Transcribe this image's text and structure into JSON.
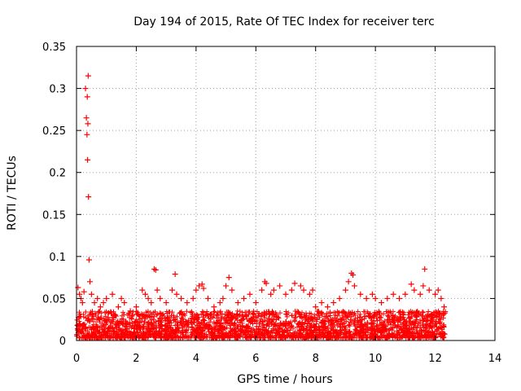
{
  "chart_data": {
    "type": "scatter",
    "title": "Day 194 of 2015, Rate Of TEC Index for receiver terc",
    "xlabel": "GPS time / hours",
    "ylabel": "ROTI / TECUs",
    "xlim": [
      0,
      14
    ],
    "ylim": [
      0,
      0.35
    ],
    "x_ticks": [
      0,
      2,
      4,
      6,
      8,
      10,
      12,
      14
    ],
    "x_tick_labels": [
      "0",
      "2",
      "4",
      "6",
      "8",
      "10",
      "12",
      "14"
    ],
    "y_ticks": [
      0,
      0.05,
      0.1,
      0.15,
      0.2,
      0.25,
      0.3,
      0.35
    ],
    "y_tick_labels": [
      "0",
      "0.05",
      "0.1",
      "0.15",
      "0.2",
      "0.25",
      "0.3",
      "0.35"
    ],
    "grid": true,
    "marker": "+",
    "color": "#ff0000",
    "series": [
      {
        "name": "ROTI",
        "x": [
          0.05,
          0.1,
          0.15,
          0.2,
          0.25,
          0.3,
          0.33,
          0.35,
          0.36,
          0.37,
          0.38,
          0.39,
          0.4,
          0.42,
          0.45,
          0.5,
          0.6,
          0.7,
          0.8,
          0.9,
          1.0,
          1.2,
          1.4,
          1.5,
          1.6,
          1.8,
          2.0,
          2.2,
          2.3,
          2.4,
          2.5,
          2.6,
          2.65,
          2.7,
          2.8,
          3.0,
          3.2,
          3.3,
          3.35,
          3.5,
          3.7,
          3.9,
          4.0,
          4.1,
          4.2,
          4.25,
          4.4,
          4.6,
          4.8,
          4.9,
          5.0,
          5.1,
          5.2,
          5.4,
          5.6,
          5.8,
          6.0,
          6.2,
          6.3,
          6.35,
          6.5,
          6.6,
          6.8,
          7.0,
          7.2,
          7.3,
          7.5,
          7.6,
          7.8,
          7.9,
          8.0,
          8.2,
          8.4,
          8.6,
          8.8,
          9.0,
          9.1,
          9.2,
          9.25,
          9.3,
          9.5,
          9.7,
          9.9,
          10.0,
          10.2,
          10.4,
          10.6,
          10.8,
          11.0,
          11.2,
          11.3,
          11.5,
          11.6,
          11.65,
          11.8,
          12.0,
          12.1,
          12.2,
          12.3
        ],
        "y": [
          0.063,
          0.055,
          0.05,
          0.045,
          0.058,
          0.3,
          0.265,
          0.245,
          0.29,
          0.215,
          0.258,
          0.315,
          0.171,
          0.096,
          0.07,
          0.055,
          0.045,
          0.05,
          0.04,
          0.045,
          0.05,
          0.055,
          0.04,
          0.05,
          0.045,
          0.035,
          0.04,
          0.06,
          0.055,
          0.05,
          0.045,
          0.085,
          0.084,
          0.06,
          0.05,
          0.045,
          0.06,
          0.079,
          0.055,
          0.05,
          0.045,
          0.05,
          0.06,
          0.065,
          0.067,
          0.062,
          0.05,
          0.04,
          0.045,
          0.05,
          0.065,
          0.075,
          0.06,
          0.045,
          0.05,
          0.055,
          0.045,
          0.06,
          0.07,
          0.068,
          0.055,
          0.06,
          0.065,
          0.055,
          0.06,
          0.068,
          0.065,
          0.06,
          0.055,
          0.06,
          0.04,
          0.045,
          0.04,
          0.045,
          0.05,
          0.06,
          0.07,
          0.08,
          0.078,
          0.065,
          0.055,
          0.05,
          0.055,
          0.05,
          0.045,
          0.05,
          0.055,
          0.05,
          0.055,
          0.067,
          0.06,
          0.055,
          0.065,
          0.085,
          0.06,
          0.055,
          0.06,
          0.05,
          0.04
        ]
      }
    ],
    "band": {
      "description": "dense base of points",
      "x_range": [
        0,
        12.35
      ],
      "y_floor": 0.003,
      "y_typical_max": 0.035
    }
  }
}
